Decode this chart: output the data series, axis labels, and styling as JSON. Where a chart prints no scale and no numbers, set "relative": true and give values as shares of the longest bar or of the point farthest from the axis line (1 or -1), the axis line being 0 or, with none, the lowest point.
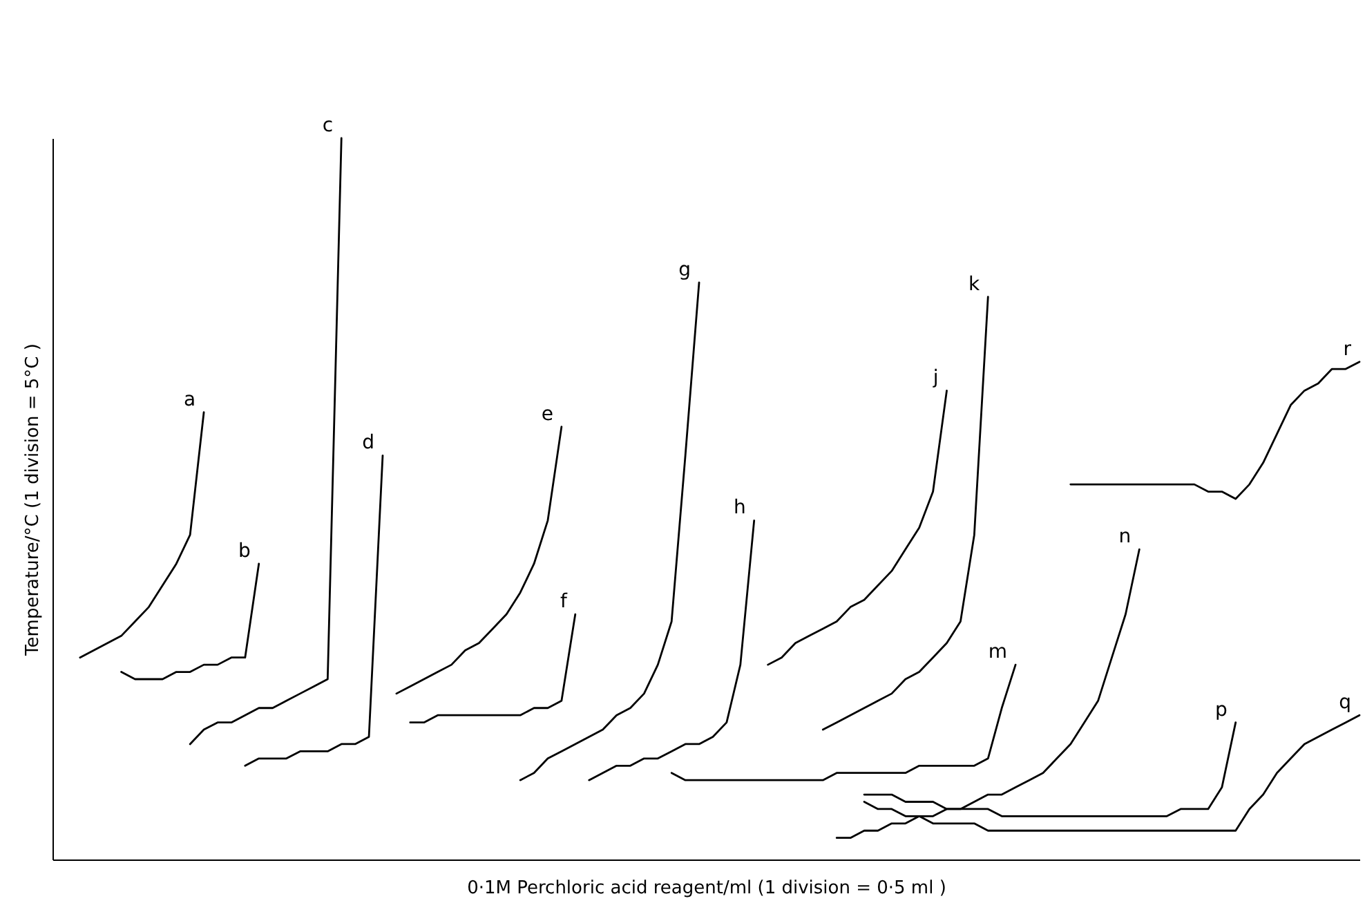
{
  "chart_data": {
    "type": "line",
    "relative": true,
    "line_style": "solid",
    "marker": "none",
    "xlabel": "0·1M Perchloric acid reagent/ml  (1 division = 0·5 ml )",
    "ylabel": "Temperature/°C  (1 division = 5°C )",
    "categories": [
      null,
      null,
      null,
      null,
      null,
      null,
      null,
      null,
      null,
      null,
      null,
      null,
      null,
      null,
      null,
      null,
      null,
      null,
      null,
      null,
      null,
      null,
      null,
      null,
      null,
      null,
      null,
      null,
      null,
      null,
      null,
      null,
      null,
      null,
      null,
      null,
      null,
      null,
      null,
      null,
      null,
      null,
      null,
      null,
      null,
      null,
      null,
      null,
      null,
      null,
      null,
      null,
      null,
      null,
      null,
      null,
      null,
      null,
      null,
      null,
      null,
      null,
      null,
      null,
      null,
      null,
      null,
      null,
      null,
      null,
      null,
      null,
      null,
      null,
      null,
      null,
      null,
      null,
      null,
      null,
      null,
      null,
      null,
      null,
      null,
      null,
      null,
      null,
      null,
      null,
      null,
      null,
      null,
      null,
      null,
      null
    ],
    "series": [
      {
        "name": "a",
        "color": "#000000",
        "values": [
          null,
          null,
          0.28,
          0.29,
          0.3,
          0.31,
          0.33,
          0.35,
          0.38,
          0.41,
          0.45,
          0.62,
          null,
          null,
          null,
          null,
          null,
          null,
          null,
          null,
          null,
          null,
          null,
          null,
          null,
          null,
          null,
          null,
          null,
          null,
          null,
          null,
          null,
          null,
          null,
          null,
          null,
          null,
          null,
          null,
          null,
          null,
          null,
          null,
          null,
          null,
          null,
          null,
          null,
          null,
          null,
          null,
          null,
          null,
          null,
          null,
          null,
          null,
          null,
          null,
          null,
          null,
          null,
          null,
          null,
          null,
          null,
          null,
          null,
          null,
          null,
          null,
          null,
          null,
          null,
          null,
          null,
          null,
          null,
          null,
          null,
          null,
          null,
          null,
          null,
          null,
          null,
          null,
          null,
          null,
          null,
          null,
          null,
          null,
          null,
          null
        ]
      },
      {
        "name": "b",
        "color": "#000000",
        "values": [
          null,
          null,
          null,
          null,
          null,
          0.26,
          0.25,
          0.25,
          0.25,
          0.26,
          0.26,
          0.27,
          0.27,
          0.28,
          0.28,
          0.41,
          null,
          null,
          null,
          null,
          null,
          null,
          null,
          null,
          null,
          null,
          null,
          null,
          null,
          null,
          null,
          null,
          null,
          null,
          null,
          null,
          null,
          null,
          null,
          null,
          null,
          null,
          null,
          null,
          null,
          null,
          null,
          null,
          null,
          null,
          null,
          null,
          null,
          null,
          null,
          null,
          null,
          null,
          null,
          null,
          null,
          null,
          null,
          null,
          null,
          null,
          null,
          null,
          null,
          null,
          null,
          null,
          null,
          null,
          null,
          null,
          null,
          null,
          null,
          null,
          null,
          null,
          null,
          null,
          null,
          null,
          null,
          null,
          null,
          null,
          null,
          null,
          null,
          null,
          null,
          null
        ]
      },
      {
        "name": "c",
        "color": "#000000",
        "values": [
          null,
          null,
          null,
          null,
          null,
          null,
          null,
          null,
          null,
          null,
          0.16,
          0.18,
          0.19,
          0.19,
          0.2,
          0.21,
          0.21,
          0.22,
          0.23,
          0.24,
          0.25,
          1.0,
          null,
          null,
          null,
          null,
          null,
          null,
          null,
          null,
          null,
          null,
          null,
          null,
          null,
          null,
          null,
          null,
          null,
          null,
          null,
          null,
          null,
          null,
          null,
          null,
          null,
          null,
          null,
          null,
          null,
          null,
          null,
          null,
          null,
          null,
          null,
          null,
          null,
          null,
          null,
          null,
          null,
          null,
          null,
          null,
          null,
          null,
          null,
          null,
          null,
          null,
          null,
          null,
          null,
          null,
          null,
          null,
          null,
          null,
          null,
          null,
          null,
          null,
          null,
          null,
          null,
          null,
          null,
          null,
          null,
          null,
          null,
          null,
          null,
          null
        ]
      },
      {
        "name": "d",
        "color": "#000000",
        "values": [
          null,
          null,
          null,
          null,
          null,
          null,
          null,
          null,
          null,
          null,
          null,
          null,
          null,
          null,
          0.13,
          0.14,
          0.14,
          0.14,
          0.15,
          0.15,
          0.15,
          0.16,
          0.16,
          0.17,
          0.56,
          null,
          null,
          null,
          null,
          null,
          null,
          null,
          null,
          null,
          null,
          null,
          null,
          null,
          null,
          null,
          null,
          null,
          null,
          null,
          null,
          null,
          null,
          null,
          null,
          null,
          null,
          null,
          null,
          null,
          null,
          null,
          null,
          null,
          null,
          null,
          null,
          null,
          null,
          null,
          null,
          null,
          null,
          null,
          null,
          null,
          null,
          null,
          null,
          null,
          null,
          null,
          null,
          null,
          null,
          null,
          null,
          null,
          null,
          null,
          null,
          null,
          null,
          null,
          null,
          null,
          null,
          null,
          null,
          null,
          null,
          null
        ]
      },
      {
        "name": "e",
        "color": "#000000",
        "values": [
          null,
          null,
          null,
          null,
          null,
          null,
          null,
          null,
          null,
          null,
          null,
          null,
          null,
          null,
          null,
          null,
          null,
          null,
          null,
          null,
          null,
          null,
          null,
          null,
          null,
          0.23,
          0.24,
          0.25,
          0.26,
          0.27,
          0.29,
          0.3,
          0.32,
          0.34,
          0.37,
          0.41,
          0.47,
          0.6,
          null,
          null,
          null,
          null,
          null,
          null,
          null,
          null,
          null,
          null,
          null,
          null,
          null,
          null,
          null,
          null,
          null,
          null,
          null,
          null,
          null,
          null,
          null,
          null,
          null,
          null,
          null,
          null,
          null,
          null,
          null,
          null,
          null,
          null,
          null,
          null,
          null,
          null,
          null,
          null,
          null,
          null,
          null,
          null,
          null,
          null,
          null,
          null,
          null,
          null,
          null,
          null,
          null,
          null,
          null,
          null,
          null,
          null
        ]
      },
      {
        "name": "f",
        "color": "#000000",
        "values": [
          null,
          null,
          null,
          null,
          null,
          null,
          null,
          null,
          null,
          null,
          null,
          null,
          null,
          null,
          null,
          null,
          null,
          null,
          null,
          null,
          null,
          null,
          null,
          null,
          null,
          null,
          0.19,
          0.19,
          0.2,
          0.2,
          0.2,
          0.2,
          0.2,
          0.2,
          0.2,
          0.21,
          0.21,
          0.22,
          0.34,
          null,
          null,
          null,
          null,
          null,
          null,
          null,
          null,
          null,
          null,
          null,
          null,
          null,
          null,
          null,
          null,
          null,
          null,
          null,
          null,
          null,
          null,
          null,
          null,
          null,
          null,
          null,
          null,
          null,
          null,
          null,
          null,
          null,
          null,
          null,
          null,
          null,
          null,
          null,
          null,
          null,
          null,
          null,
          null,
          null,
          null,
          null,
          null,
          null,
          null,
          null,
          null,
          null,
          null,
          null,
          null,
          null
        ]
      },
      {
        "name": "g",
        "color": "#000000",
        "values": [
          null,
          null,
          null,
          null,
          null,
          null,
          null,
          null,
          null,
          null,
          null,
          null,
          null,
          null,
          null,
          null,
          null,
          null,
          null,
          null,
          null,
          null,
          null,
          null,
          null,
          null,
          null,
          null,
          null,
          null,
          null,
          null,
          null,
          null,
          0.11,
          0.12,
          0.14,
          0.15,
          0.16,
          0.17,
          0.18,
          0.2,
          0.21,
          0.23,
          0.27,
          0.33,
          0.56,
          0.8,
          null,
          null,
          null,
          null,
          null,
          null,
          null,
          null,
          null,
          null,
          null,
          null,
          null,
          null,
          null,
          null,
          null,
          null,
          null,
          null,
          null,
          null,
          null,
          null,
          null,
          null,
          null,
          null,
          null,
          null,
          null,
          null,
          null,
          null,
          null,
          null,
          null,
          null,
          null,
          null,
          null,
          null,
          null,
          null,
          null,
          null,
          null,
          null
        ]
      },
      {
        "name": "h",
        "color": "#000000",
        "values": [
          null,
          null,
          null,
          null,
          null,
          null,
          null,
          null,
          null,
          null,
          null,
          null,
          null,
          null,
          null,
          null,
          null,
          null,
          null,
          null,
          null,
          null,
          null,
          null,
          null,
          null,
          null,
          null,
          null,
          null,
          null,
          null,
          null,
          null,
          null,
          null,
          null,
          null,
          null,
          0.11,
          0.12,
          0.13,
          0.13,
          0.14,
          0.14,
          0.15,
          0.16,
          0.16,
          0.17,
          0.19,
          0.27,
          0.47,
          null,
          null,
          null,
          null,
          null,
          null,
          null,
          null,
          null,
          null,
          null,
          null,
          null,
          null,
          null,
          null,
          null,
          null,
          null,
          null,
          null,
          null,
          null,
          null,
          null,
          null,
          null,
          null,
          null,
          null,
          null,
          null,
          null,
          null,
          null,
          null,
          null,
          null,
          null,
          null,
          null,
          null,
          null,
          null
        ]
      },
      {
        "name": "j",
        "color": "#000000",
        "values": [
          null,
          null,
          null,
          null,
          null,
          null,
          null,
          null,
          null,
          null,
          null,
          null,
          null,
          null,
          null,
          null,
          null,
          null,
          null,
          null,
          null,
          null,
          null,
          null,
          null,
          null,
          null,
          null,
          null,
          null,
          null,
          null,
          null,
          null,
          null,
          null,
          null,
          null,
          null,
          null,
          null,
          null,
          null,
          null,
          null,
          null,
          null,
          null,
          null,
          null,
          null,
          null,
          0.27,
          0.28,
          0.3,
          0.31,
          0.32,
          0.33,
          0.35,
          0.36,
          0.38,
          0.4,
          0.43,
          0.46,
          0.51,
          0.65,
          null,
          null,
          null,
          null,
          null,
          null,
          null,
          null,
          null,
          null,
          null,
          null,
          null,
          null,
          null,
          null,
          null,
          null,
          null,
          null,
          null,
          null,
          null,
          null,
          null,
          null,
          null,
          null,
          null,
          null
        ]
      },
      {
        "name": "k",
        "color": "#000000",
        "values": [
          null,
          null,
          null,
          null,
          null,
          null,
          null,
          null,
          null,
          null,
          null,
          null,
          null,
          null,
          null,
          null,
          null,
          null,
          null,
          null,
          null,
          null,
          null,
          null,
          null,
          null,
          null,
          null,
          null,
          null,
          null,
          null,
          null,
          null,
          null,
          null,
          null,
          null,
          null,
          null,
          null,
          null,
          null,
          null,
          null,
          null,
          null,
          null,
          null,
          null,
          null,
          null,
          null,
          null,
          null,
          null,
          0.18,
          0.19,
          0.2,
          0.21,
          0.22,
          0.23,
          0.25,
          0.26,
          0.28,
          0.3,
          0.33,
          0.45,
          0.78,
          null,
          null,
          null,
          null,
          null,
          null,
          null,
          null,
          null,
          null,
          null,
          null,
          null,
          null,
          null,
          null,
          null,
          null,
          null,
          null,
          null,
          null,
          null,
          null,
          null,
          null,
          null
        ]
      },
      {
        "name": "m",
        "color": "#000000",
        "values": [
          null,
          null,
          null,
          null,
          null,
          null,
          null,
          null,
          null,
          null,
          null,
          null,
          null,
          null,
          null,
          null,
          null,
          null,
          null,
          null,
          null,
          null,
          null,
          null,
          null,
          null,
          null,
          null,
          null,
          null,
          null,
          null,
          null,
          null,
          null,
          null,
          null,
          null,
          null,
          null,
          null,
          null,
          null,
          null,
          null,
          0.12,
          0.11,
          0.11,
          0.11,
          0.11,
          0.11,
          0.11,
          0.11,
          0.11,
          0.11,
          0.11,
          0.11,
          0.12,
          0.12,
          0.12,
          0.12,
          0.12,
          0.12,
          0.13,
          0.13,
          0.13,
          0.13,
          0.13,
          0.14,
          0.21,
          0.27,
          null,
          null,
          null,
          null,
          null,
          null,
          null,
          null,
          null,
          null,
          null,
          null,
          null,
          null,
          null,
          null,
          null,
          null,
          null,
          null,
          null,
          null,
          null,
          null,
          null
        ]
      },
      {
        "name": "n",
        "color": "#000000",
        "values": [
          null,
          null,
          null,
          null,
          null,
          null,
          null,
          null,
          null,
          null,
          null,
          null,
          null,
          null,
          null,
          null,
          null,
          null,
          null,
          null,
          null,
          null,
          null,
          null,
          null,
          null,
          null,
          null,
          null,
          null,
          null,
          null,
          null,
          null,
          null,
          null,
          null,
          null,
          null,
          null,
          null,
          null,
          null,
          null,
          null,
          null,
          null,
          null,
          null,
          null,
          null,
          null,
          null,
          null,
          null,
          null,
          null,
          0.03,
          0.03,
          0.04,
          0.04,
          0.05,
          0.05,
          0.06,
          0.06,
          0.07,
          0.07,
          0.08,
          0.09,
          0.09,
          0.1,
          0.11,
          0.12,
          0.14,
          0.16,
          0.19,
          0.22,
          0.28,
          0.34,
          0.43,
          null,
          null,
          null,
          null,
          null,
          null,
          null,
          null,
          null,
          null,
          null,
          null,
          null,
          null,
          null,
          null
        ]
      },
      {
        "name": "p",
        "color": "#000000",
        "values": [
          null,
          null,
          null,
          null,
          null,
          null,
          null,
          null,
          null,
          null,
          null,
          null,
          null,
          null,
          null,
          null,
          null,
          null,
          null,
          null,
          null,
          null,
          null,
          null,
          null,
          null,
          null,
          null,
          null,
          null,
          null,
          null,
          null,
          null,
          null,
          null,
          null,
          null,
          null,
          null,
          null,
          null,
          null,
          null,
          null,
          null,
          null,
          null,
          null,
          null,
          null,
          null,
          null,
          null,
          null,
          null,
          null,
          null,
          null,
          0.09,
          0.09,
          0.09,
          0.08,
          0.08,
          0.08,
          0.07,
          0.07,
          0.07,
          0.07,
          0.06,
          0.06,
          0.06,
          0.06,
          0.06,
          0.06,
          0.06,
          0.06,
          0.06,
          0.06,
          0.06,
          0.06,
          0.06,
          0.07,
          0.07,
          0.07,
          0.1,
          0.19,
          null,
          null,
          null,
          null,
          null,
          null,
          null,
          null,
          null
        ]
      },
      {
        "name": "q",
        "color": "#000000",
        "values": [
          null,
          null,
          null,
          null,
          null,
          null,
          null,
          null,
          null,
          null,
          null,
          null,
          null,
          null,
          null,
          null,
          null,
          null,
          null,
          null,
          null,
          null,
          null,
          null,
          null,
          null,
          null,
          null,
          null,
          null,
          null,
          null,
          null,
          null,
          null,
          null,
          null,
          null,
          null,
          null,
          null,
          null,
          null,
          null,
          null,
          null,
          null,
          null,
          null,
          null,
          null,
          null,
          null,
          null,
          null,
          null,
          null,
          null,
          null,
          0.08,
          0.07,
          0.07,
          0.06,
          0.06,
          0.05,
          0.05,
          0.05,
          0.05,
          0.04,
          0.04,
          0.04,
          0.04,
          0.04,
          0.04,
          0.04,
          0.04,
          0.04,
          0.04,
          0.04,
          0.04,
          0.04,
          0.04,
          0.04,
          0.04,
          0.04,
          0.04,
          0.04,
          0.07,
          0.09,
          0.12,
          0.14,
          0.16,
          0.17,
          0.18,
          0.19,
          0.2
        ]
      },
      {
        "name": "r",
        "color": "#000000",
        "values": [
          null,
          null,
          null,
          null,
          null,
          null,
          null,
          null,
          null,
          null,
          null,
          null,
          null,
          null,
          null,
          null,
          null,
          null,
          null,
          null,
          null,
          null,
          null,
          null,
          null,
          null,
          null,
          null,
          null,
          null,
          null,
          null,
          null,
          null,
          null,
          null,
          null,
          null,
          null,
          null,
          null,
          null,
          null,
          null,
          null,
          null,
          null,
          null,
          null,
          null,
          null,
          null,
          null,
          null,
          null,
          null,
          null,
          null,
          null,
          null,
          null,
          null,
          null,
          null,
          null,
          null,
          null,
          null,
          null,
          null,
          null,
          null,
          null,
          null,
          0.52,
          0.52,
          0.52,
          0.52,
          0.52,
          0.52,
          0.52,
          0.52,
          0.52,
          0.52,
          0.51,
          0.51,
          0.5,
          0.52,
          0.55,
          0.59,
          0.63,
          0.65,
          0.66,
          0.68,
          0.68,
          0.69
        ]
      }
    ]
  }
}
